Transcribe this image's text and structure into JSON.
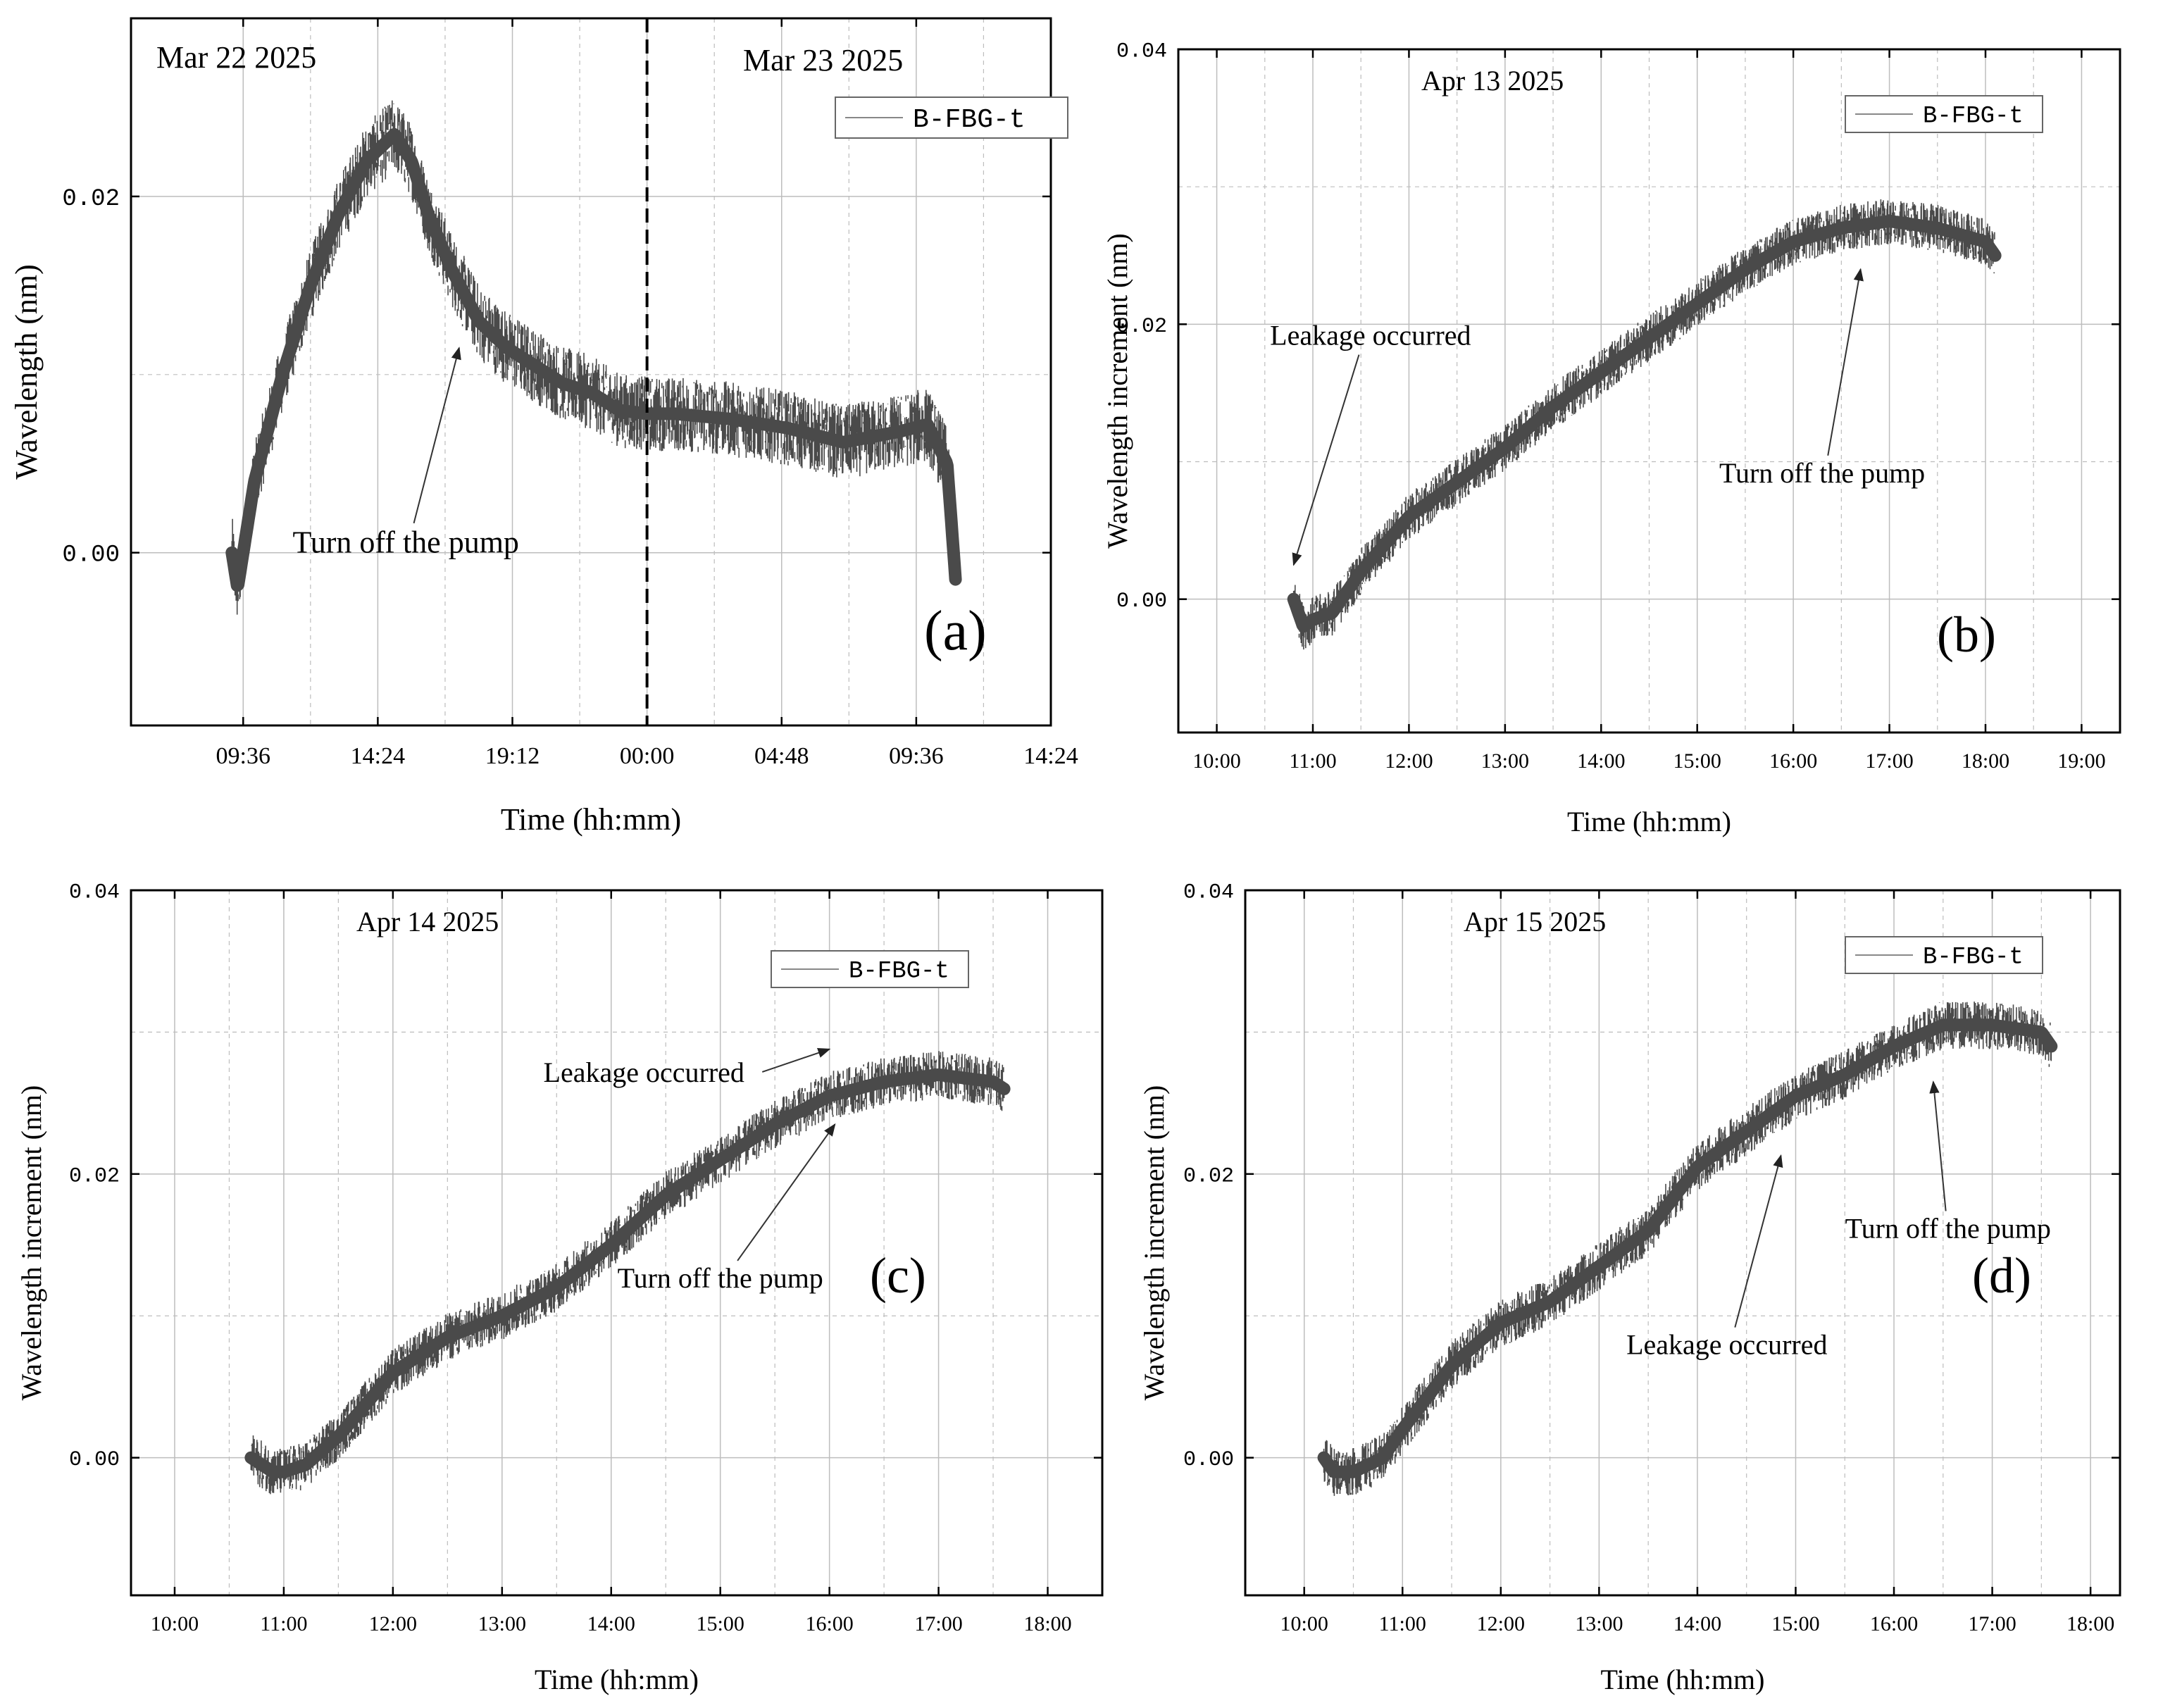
{
  "figure": {
    "background": "#ffffff",
    "series_color": "#4a4a4a",
    "grid_color": "#bdbdbd",
    "arrow_color": "#333333"
  },
  "chart_data": [
    {
      "id": "a",
      "type": "line",
      "panel_label": "(a)",
      "xlabel": "Time (hh:mm)",
      "ylabel": "Wavelength (nm)",
      "x_unit": "hours since Mar 22 2025 00:00",
      "xlim": [
        5.6,
        38.4
      ],
      "ylim": [
        -0.0097,
        0.03
      ],
      "x_ticks": [
        9.6,
        14.4,
        19.2,
        24.0,
        28.8,
        33.6,
        38.4
      ],
      "x_tick_labels": [
        "09:36",
        "14:24",
        "19:12",
        "00:00",
        "04:48",
        "09:36",
        "14:24"
      ],
      "y_ticks": [
        0.0,
        0.02
      ],
      "y_tick_labels": [
        "0.00",
        "0.02"
      ],
      "y_minor_ticks": [
        0.01
      ],
      "grid": true,
      "date_labels": [
        {
          "text": "Mar 22 2025",
          "position": "top-left"
        },
        {
          "text": "Mar 23 2025",
          "position": "top-right"
        }
      ],
      "divider_x": 24.0,
      "legend": {
        "label": "B-FBG-t",
        "position": "top-right"
      },
      "series": [
        {
          "name": "B-FBG-t",
          "noise": 0.0021,
          "x": [
            9.2,
            9.4,
            10.0,
            11.0,
            12.0,
            13.0,
            14.0,
            15.0,
            15.6,
            16.2,
            17.0,
            18.0,
            19.0,
            20.0,
            21.0,
            22.0,
            23.0,
            24.0,
            25.0,
            27.0,
            29.0,
            31.0,
            33.0,
            34.0,
            34.7,
            35.0
          ],
          "y": [
            0.0,
            -0.002,
            0.004,
            0.01,
            0.015,
            0.019,
            0.022,
            0.0235,
            0.022,
            0.019,
            0.016,
            0.013,
            0.0115,
            0.0105,
            0.0095,
            0.009,
            0.008,
            0.0078,
            0.0078,
            0.0075,
            0.007,
            0.0062,
            0.0068,
            0.0072,
            0.005,
            -0.0015
          ]
        }
      ],
      "annotations": [
        {
          "text": "Turn off the pump",
          "x": 15.4,
          "y": 0.0,
          "arrow_to": [
            17.3,
            0.0115
          ]
        }
      ]
    },
    {
      "id": "b",
      "type": "line",
      "panel_label": "(b)",
      "xlabel": "Time (hh:mm)",
      "ylabel": "Wavelength  increment (nm)",
      "x_unit": "hours of Apr 13 2025",
      "xlim": [
        9.6,
        19.4
      ],
      "ylim": [
        -0.0097,
        0.04
      ],
      "x_ticks": [
        10,
        11,
        12,
        13,
        14,
        15,
        16,
        17,
        18,
        19
      ],
      "x_tick_labels": [
        "10:00",
        "11:00",
        "12:00",
        "13:00",
        "14:00",
        "15:00",
        "16:00",
        "17:00",
        "18:00",
        "19:00"
      ],
      "y_ticks": [
        0.0,
        0.02,
        0.04
      ],
      "y_tick_labels": [
        "0.00",
        "0.02",
        "0.04"
      ],
      "y_minor_ticks": [
        0.01,
        0.03
      ],
      "grid": true,
      "date_labels": [
        {
          "text": "Apr 13 2025",
          "position": "top-left"
        }
      ],
      "legend": {
        "label": "B-FBG-t",
        "position": "top-right"
      },
      "series": [
        {
          "name": "B-FBG-t",
          "noise": 0.0017,
          "x": [
            10.8,
            10.9,
            11.0,
            11.2,
            11.5,
            12.0,
            12.5,
            13.0,
            13.5,
            14.0,
            14.5,
            15.0,
            15.5,
            16.0,
            16.5,
            17.0,
            17.5,
            18.0,
            18.1
          ],
          "y": [
            0.0,
            -0.002,
            -0.0015,
            -0.001,
            0.002,
            0.006,
            0.0085,
            0.011,
            0.014,
            0.0165,
            0.019,
            0.0215,
            0.024,
            0.026,
            0.027,
            0.0275,
            0.027,
            0.026,
            0.025
          ]
        }
      ],
      "annotations": [
        {
          "text": "Leakage occurred",
          "x": 11.6,
          "y": 0.0185,
          "arrow_to": [
            10.8,
            0.0025
          ]
        },
        {
          "text": "Turn off the pump",
          "x": 16.3,
          "y": 0.0085,
          "arrow_to": [
            16.7,
            0.024
          ]
        }
      ]
    },
    {
      "id": "c",
      "type": "line",
      "panel_label": "(c)",
      "xlabel": "Time (hh:mm)",
      "ylabel": "Wavelength  increment (nm)",
      "x_unit": "hours of Apr 14 2025",
      "xlim": [
        9.6,
        18.5
      ],
      "ylim": [
        -0.0097,
        0.04
      ],
      "x_ticks": [
        10,
        11,
        12,
        13,
        14,
        15,
        16,
        17,
        18
      ],
      "x_tick_labels": [
        "10:00",
        "11:00",
        "12:00",
        "13:00",
        "14:00",
        "15:00",
        "16:00",
        "17:00",
        "18:00"
      ],
      "y_ticks": [
        0.0,
        0.02,
        0.04
      ],
      "y_tick_labels": [
        "0.00",
        "0.02",
        "0.04"
      ],
      "y_minor_ticks": [
        0.01,
        0.03
      ],
      "grid": true,
      "date_labels": [
        {
          "text": "Apr 14 2025",
          "position": "top-left"
        }
      ],
      "legend": {
        "label": "B-FBG-t",
        "position": "top-right"
      },
      "series": [
        {
          "name": "B-FBG-t",
          "noise": 0.0017,
          "x": [
            10.7,
            10.8,
            10.9,
            11.0,
            11.2,
            11.5,
            12.0,
            12.5,
            13.0,
            13.5,
            14.0,
            14.5,
            15.0,
            15.5,
            16.0,
            16.5,
            17.0,
            17.5,
            17.6
          ],
          "y": [
            0.0,
            -0.0005,
            -0.001,
            -0.001,
            -0.0005,
            0.0015,
            0.006,
            0.0085,
            0.01,
            0.012,
            0.015,
            0.0185,
            0.021,
            0.0235,
            0.0255,
            0.0265,
            0.027,
            0.0265,
            0.026
          ]
        }
      ],
      "annotations": [
        {
          "text": "Leakage occurred",
          "x": 14.3,
          "y": 0.0265,
          "arrow_to": [
            16.0,
            0.0288
          ]
        },
        {
          "text": "Turn off the pump",
          "x": 15.0,
          "y": 0.012,
          "arrow_to": [
            16.05,
            0.0235
          ]
        }
      ]
    },
    {
      "id": "d",
      "type": "line",
      "panel_label": "(d)",
      "xlabel": "Time (hh:mm)",
      "ylabel": "Wavelength  increment (nm)",
      "x_unit": "hours of Apr 15 2025",
      "xlim": [
        9.4,
        18.3
      ],
      "ylim": [
        -0.0097,
        0.04
      ],
      "x_ticks": [
        10,
        11,
        12,
        13,
        14,
        15,
        16,
        17,
        18
      ],
      "x_tick_labels": [
        "10:00",
        "11:00",
        "12:00",
        "13:00",
        "14:00",
        "15:00",
        "16:00",
        "17:00",
        "18:00"
      ],
      "y_ticks": [
        0.0,
        0.02,
        0.04
      ],
      "y_tick_labels": [
        "0.00",
        "0.02",
        "0.04"
      ],
      "y_minor_ticks": [
        0.01,
        0.03
      ],
      "grid": true,
      "date_labels": [
        {
          "text": "Apr 15 2025",
          "position": "top-left"
        }
      ],
      "legend": {
        "label": "B-FBG-t",
        "position": "top-right"
      },
      "series": [
        {
          "name": "B-FBG-t",
          "noise": 0.0017,
          "x": [
            10.2,
            10.3,
            10.5,
            10.8,
            11.0,
            11.5,
            12.0,
            12.5,
            13.0,
            13.5,
            14.0,
            14.5,
            15.0,
            15.5,
            16.0,
            16.5,
            17.0,
            17.5,
            17.6
          ],
          "y": [
            0.0,
            -0.001,
            -0.001,
            0.0,
            0.002,
            0.0065,
            0.0095,
            0.011,
            0.0135,
            0.016,
            0.0205,
            0.023,
            0.0255,
            0.027,
            0.029,
            0.0305,
            0.0305,
            0.03,
            0.029
          ]
        }
      ],
      "annotations": [
        {
          "text": "Leakage occurred",
          "x": 14.3,
          "y": 0.0073,
          "arrow_to": [
            14.85,
            0.0213
          ]
        },
        {
          "text": "Turn off the pump",
          "x": 16.55,
          "y": 0.0155,
          "arrow_to": [
            16.4,
            0.0265
          ]
        }
      ]
    }
  ]
}
